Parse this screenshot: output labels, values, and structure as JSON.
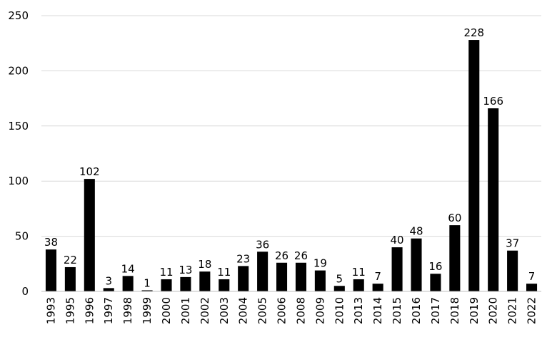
{
  "chart_data": {
    "type": "bar",
    "title": "",
    "xlabel": "",
    "ylabel": "",
    "ylim": [
      0,
      250
    ],
    "yticks": [
      0,
      50,
      100,
      150,
      200,
      250
    ],
    "grid": true,
    "legend": "none",
    "bar_color": "#000000",
    "grid_color": "#d9d9d9",
    "categories": [
      "1993",
      "1995",
      "1996",
      "1997",
      "1998",
      "1999",
      "2000",
      "2001",
      "2002",
      "2003",
      "2004",
      "2005",
      "2006",
      "2008",
      "2009",
      "2010",
      "2013",
      "2014",
      "2015",
      "2016",
      "2017",
      "2018",
      "2019",
      "2020",
      "2021",
      "2022"
    ],
    "values": [
      38,
      22,
      102,
      3,
      14,
      1,
      11,
      13,
      18,
      11,
      23,
      36,
      26,
      26,
      19,
      5,
      11,
      7,
      40,
      48,
      16,
      60,
      228,
      166,
      37,
      7
    ]
  }
}
